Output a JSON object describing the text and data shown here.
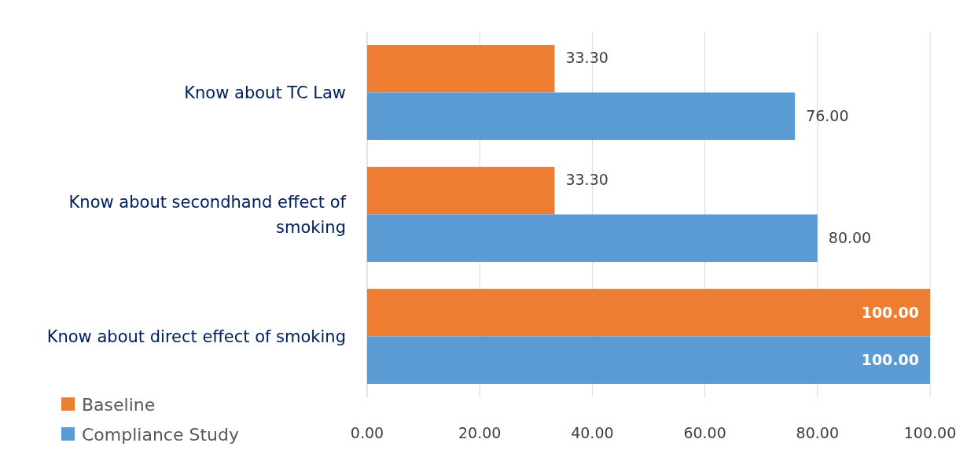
{
  "chart_data": {
    "type": "bar",
    "orientation": "horizontal",
    "categories": [
      "Know about TC Law",
      "Know about secondhand effect of smoking",
      "Know about direct effect of smoking"
    ],
    "series": [
      {
        "name": "Baseline",
        "color": "#ed7d31",
        "values": [
          33.3,
          33.3,
          100
        ],
        "value_labels": [
          "33.30",
          "33.30",
          "100.00"
        ]
      },
      {
        "name": "Compliance Study",
        "color": "#5b9bd5",
        "values": [
          76,
          80,
          100
        ],
        "value_labels": [
          "76.00",
          "80.00",
          "100.00"
        ]
      }
    ],
    "xlim": [
      0,
      100
    ],
    "xticks": [
      {
        "value": 0,
        "label": "0.00"
      },
      {
        "value": 20,
        "label": "20.00"
      },
      {
        "value": 40,
        "label": "40.00"
      },
      {
        "value": 60,
        "label": "60.00"
      },
      {
        "value": 80,
        "label": "80.00"
      },
      {
        "value": 100,
        "label": "100.00"
      }
    ],
    "grid": "x",
    "legend": "bottom left"
  }
}
